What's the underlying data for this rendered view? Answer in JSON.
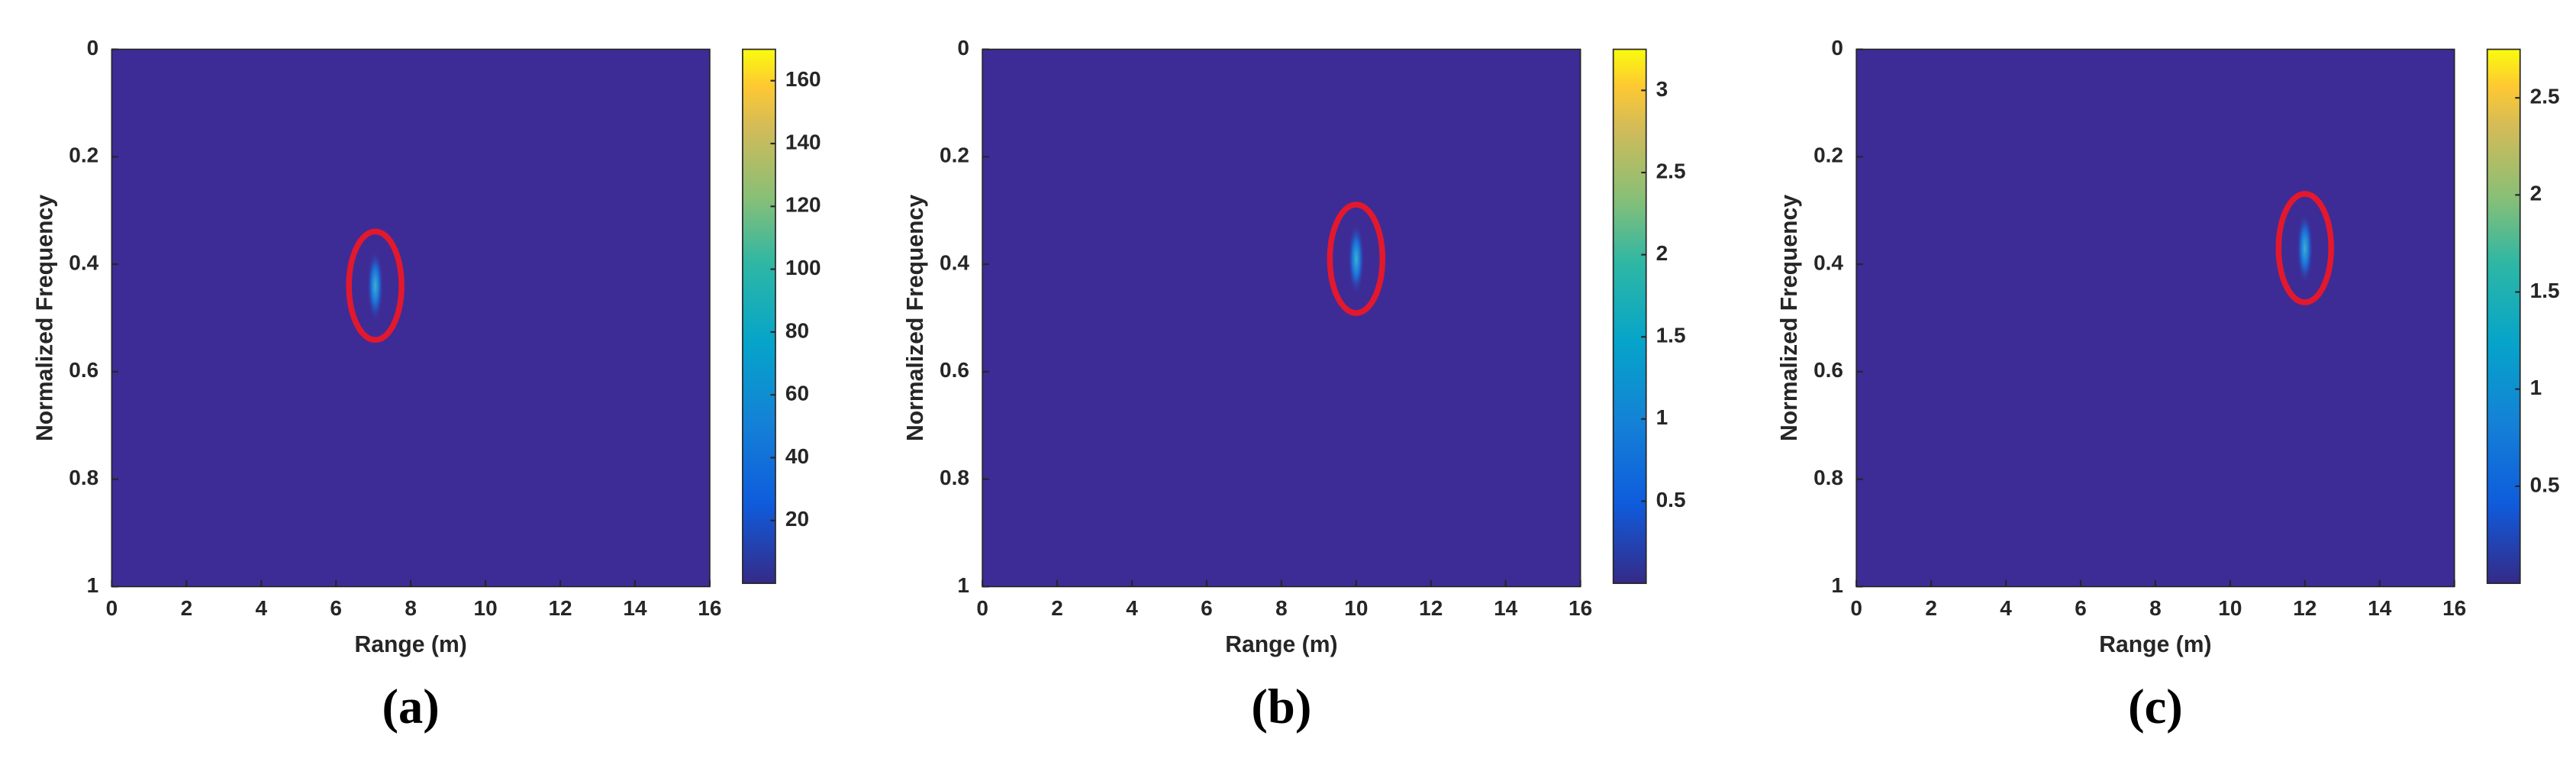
{
  "chart_data": [
    {
      "type": "heatmap",
      "label": "(a)",
      "xlabel": "Range (m)",
      "ylabel": "Normalized Frequency",
      "xlim": [
        0,
        16
      ],
      "xticks": [
        0,
        2,
        4,
        6,
        8,
        10,
        12,
        14,
        16
      ],
      "ylim": [
        0,
        1
      ],
      "yticks": [
        0,
        0.2,
        0.4,
        0.6,
        0.8,
        1
      ],
      "clim": [
        0,
        170
      ],
      "cticks": [
        20,
        40,
        60,
        80,
        100,
        120,
        140,
        160
      ],
      "peak": {
        "range": 7.05,
        "frequency": 0.44
      }
    },
    {
      "type": "heatmap",
      "label": "(b)",
      "xlabel": "Range (m)",
      "ylabel": "Normalized Frequency",
      "xlim": [
        0,
        16
      ],
      "xticks": [
        0,
        2,
        4,
        6,
        8,
        10,
        12,
        14,
        16
      ],
      "ylim": [
        0,
        1
      ],
      "yticks": [
        0,
        0.2,
        0.4,
        0.6,
        0.8,
        1
      ],
      "clim": [
        0,
        3.25
      ],
      "cticks": [
        0.5,
        1,
        1.5,
        2,
        2.5,
        3
      ],
      "peak": {
        "range": 10,
        "frequency": 0.39
      }
    },
    {
      "type": "heatmap",
      "label": "(c)",
      "xlabel": "Range (m)",
      "ylabel": "Normalized Frequency",
      "xlim": [
        0,
        16
      ],
      "xticks": [
        0,
        2,
        4,
        6,
        8,
        10,
        12,
        14,
        16
      ],
      "ylim": [
        0,
        1
      ],
      "yticks": [
        0,
        0.2,
        0.4,
        0.6,
        0.8,
        1
      ],
      "clim": [
        0,
        2.75
      ],
      "cticks": [
        0.5,
        1,
        1.5,
        2,
        2.5
      ],
      "peak": {
        "range": 12,
        "frequency": 0.37
      }
    }
  ]
}
